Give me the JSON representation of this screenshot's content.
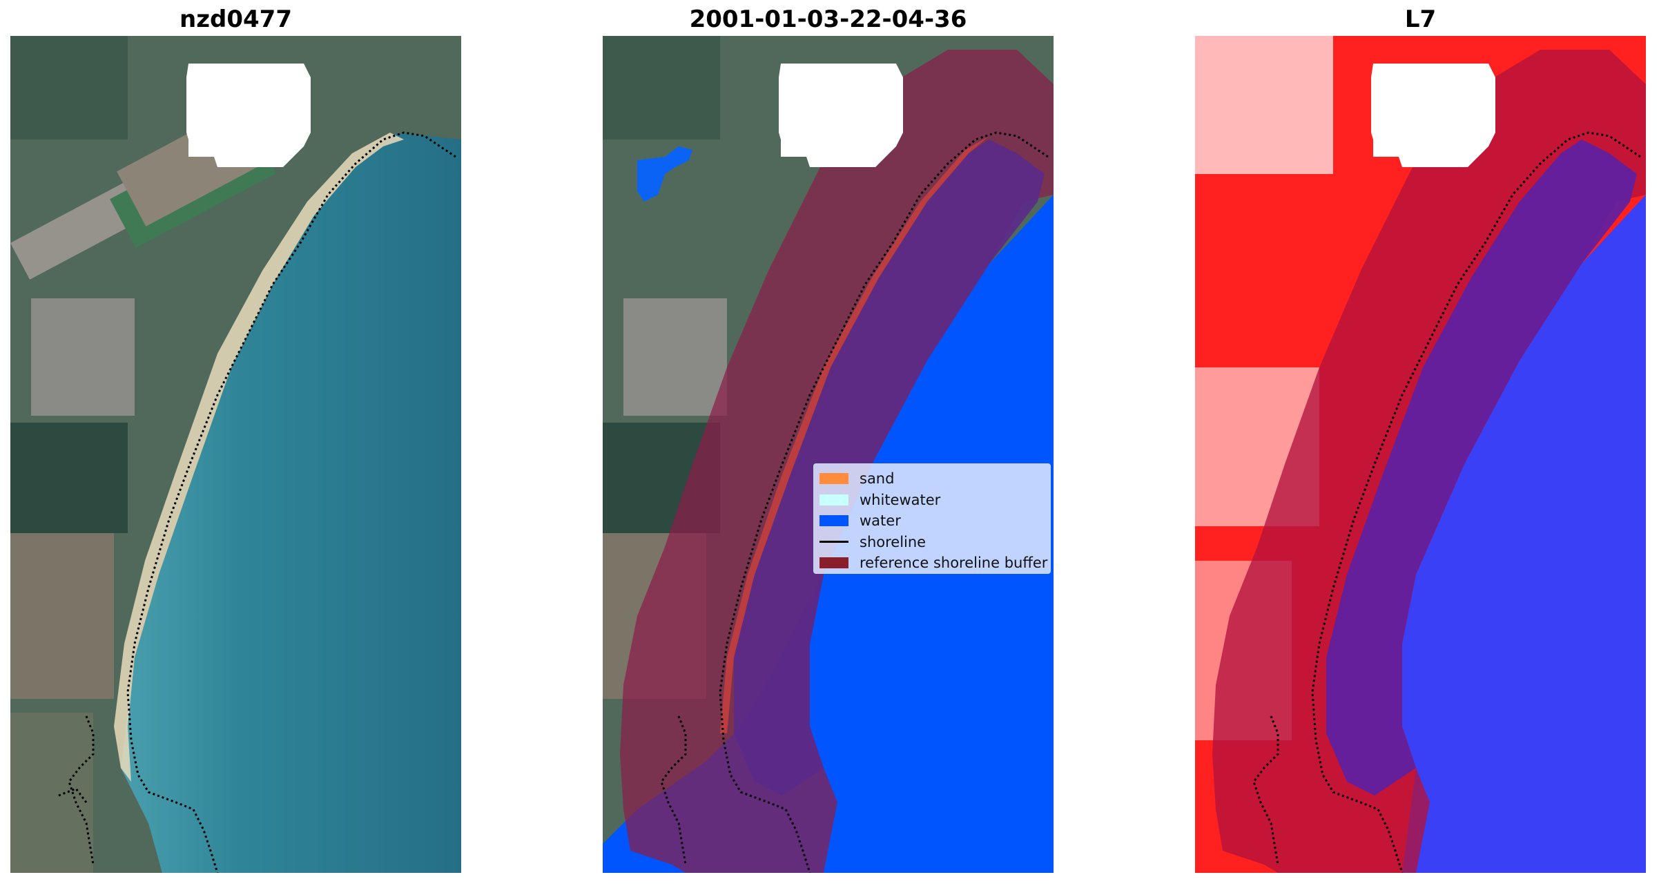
{
  "panels": [
    {
      "title": "nzd0477"
    },
    {
      "title": "2001-01-03-22-04-36"
    },
    {
      "title": "L7"
    }
  ],
  "legend": {
    "items": [
      {
        "label": "sand",
        "color": "#ff8c3a"
      },
      {
        "label": "whitewater",
        "color": "#c8ffff"
      },
      {
        "label": "water",
        "color": "#0055ff"
      },
      {
        "label": "shoreline",
        "color": "#000000"
      },
      {
        "label": "reference shoreline buffer",
        "color": "#8b1e2b"
      }
    ]
  },
  "colors": {
    "sea": "#2e7f95",
    "land": "#4e6857",
    "water_class": "#0055ff",
    "buffer": "#8b1e2b",
    "index_high": "#ff1e1e",
    "index_low": "#2a36f0"
  }
}
